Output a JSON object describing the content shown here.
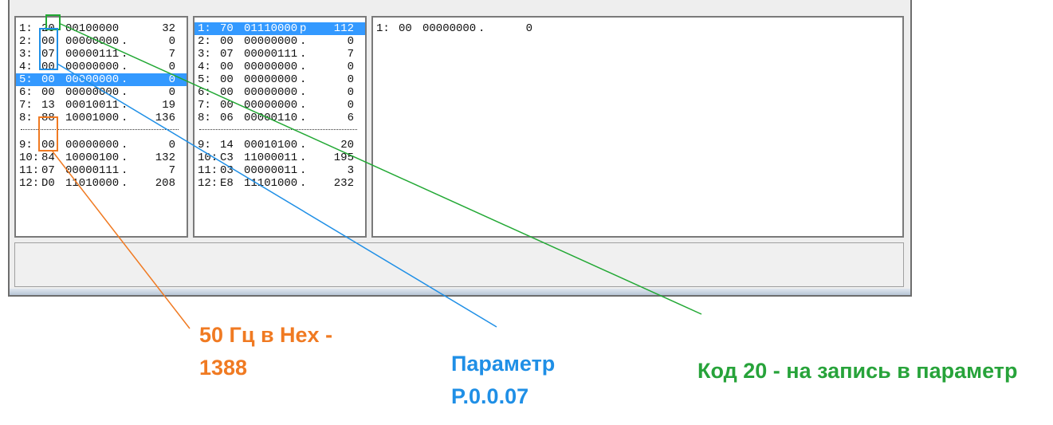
{
  "panel_left": {
    "rows": [
      {
        "idx": "1:",
        "hex": "20",
        "bin": "00100000",
        "chr": "",
        "dec": "32"
      },
      {
        "idx": "2:",
        "hex": "00",
        "bin": "00000000",
        "chr": ".",
        "dec": "0"
      },
      {
        "idx": "3:",
        "hex": "07",
        "bin": "00000111",
        "chr": ".",
        "dec": "7"
      },
      {
        "idx": "4:",
        "hex": "00",
        "bin": "00000000",
        "chr": ".",
        "dec": "0"
      },
      {
        "idx": "5:",
        "hex": "00",
        "bin": "00000000",
        "chr": ".",
        "dec": "0"
      },
      {
        "idx": "6:",
        "hex": "00",
        "bin": "00000000",
        "chr": ".",
        "dec": "0"
      },
      {
        "idx": "7:",
        "hex": "13",
        "bin": "00010011",
        "chr": ".",
        "dec": "19"
      },
      {
        "idx": "8:",
        "hex": "88",
        "bin": "10001000",
        "chr": ".",
        "dec": "136"
      },
      {
        "idx": "9:",
        "hex": "00",
        "bin": "00000000",
        "chr": ".",
        "dec": "0"
      },
      {
        "idx": "10:",
        "hex": "84",
        "bin": "10000100",
        "chr": ".",
        "dec": "132"
      },
      {
        "idx": "11:",
        "hex": "07",
        "bin": "00000111",
        "chr": ".",
        "dec": "7"
      },
      {
        "idx": "12:",
        "hex": "D0",
        "bin": "11010000",
        "chr": ".",
        "dec": "208"
      }
    ]
  },
  "panel_middle": {
    "rows": [
      {
        "idx": "1:",
        "hex": "70",
        "bin": "01110000",
        "chr": "p",
        "dec": "112"
      },
      {
        "idx": "2:",
        "hex": "00",
        "bin": "00000000",
        "chr": ".",
        "dec": "0"
      },
      {
        "idx": "3:",
        "hex": "07",
        "bin": "00000111",
        "chr": ".",
        "dec": "7"
      },
      {
        "idx": "4:",
        "hex": "00",
        "bin": "00000000",
        "chr": ".",
        "dec": "0"
      },
      {
        "idx": "5:",
        "hex": "00",
        "bin": "00000000",
        "chr": ".",
        "dec": "0"
      },
      {
        "idx": "6:",
        "hex": "00",
        "bin": "00000000",
        "chr": ".",
        "dec": "0"
      },
      {
        "idx": "7:",
        "hex": "00",
        "bin": "00000000",
        "chr": ".",
        "dec": "0"
      },
      {
        "idx": "8:",
        "hex": "06",
        "bin": "00000110",
        "chr": ".",
        "dec": "6"
      },
      {
        "idx": "9:",
        "hex": "14",
        "bin": "00010100",
        "chr": ".",
        "dec": "20"
      },
      {
        "idx": "10:",
        "hex": "C3",
        "bin": "11000011",
        "chr": ".",
        "dec": "195"
      },
      {
        "idx": "11:",
        "hex": "03",
        "bin": "00000011",
        "chr": ".",
        "dec": "3"
      },
      {
        "idx": "12:",
        "hex": "E8",
        "bin": "11101000",
        "chr": ".",
        "dec": "232"
      }
    ]
  },
  "panel_right": {
    "rows": [
      {
        "idx": "1:",
        "hex": "00",
        "bin": "00000000",
        "chr": ".",
        "dec": "0"
      }
    ]
  },
  "annotations": {
    "frequency_line1": "50 Гц в Hex -",
    "frequency_line2": "1388",
    "parameter_line1": "Параметр",
    "parameter_line2": "P.0.0.07",
    "code": "Код 20 - на запись в параметр"
  },
  "colors": {
    "green": "#22a834",
    "blue": "#1f8fe6",
    "orange": "#f07a22",
    "selection": "#3399ff"
  }
}
